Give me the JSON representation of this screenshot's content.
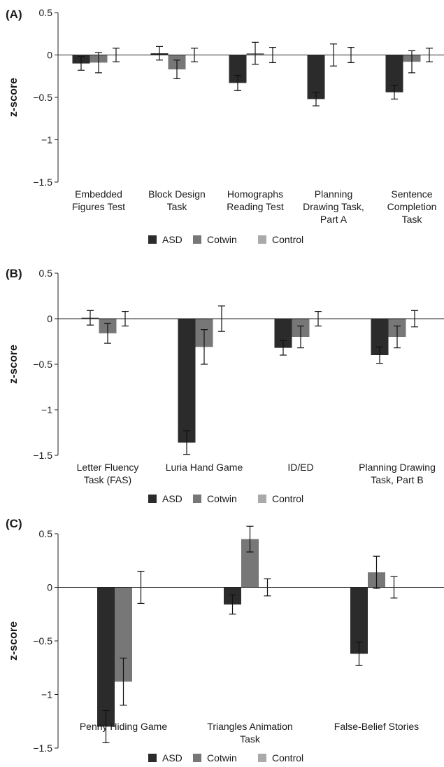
{
  "chart_data": [
    {
      "type": "bar",
      "panel_label": "(A)",
      "ylabel": "z-score",
      "ylim": [
        -1.5,
        0.5
      ],
      "yticks": [
        "0.5",
        "0",
        "−0.5",
        "−1",
        "−1.5"
      ],
      "grid": false,
      "legend_position": "bottom",
      "categories": [
        [
          "Embedded",
          "Figures Test"
        ],
        [
          "Block Design",
          "Task"
        ],
        [
          "Homographs",
          "Reading Test"
        ],
        [
          "Planning",
          "Drawing Task,",
          "Part A"
        ],
        [
          "Sentence",
          "Completion",
          "Task"
        ]
      ],
      "series": [
        {
          "name": "ASD",
          "color": "#2b2b2b",
          "values": [
            -0.1,
            0.02,
            -0.33,
            -0.52,
            -0.44
          ],
          "errors": [
            0.08,
            0.08,
            0.09,
            0.08,
            0.08
          ]
        },
        {
          "name": "Cotwin",
          "color": "#777777",
          "values": [
            -0.09,
            -0.17,
            0.02,
            0.0,
            -0.08
          ],
          "errors": [
            0.12,
            0.11,
            0.13,
            0.13,
            0.13
          ]
        },
        {
          "name": "Control",
          "color": "#aaaaaa",
          "values": [
            0.0,
            0.0,
            0.0,
            0.0,
            0.0
          ],
          "errors": [
            0.08,
            0.08,
            0.09,
            0.09,
            0.08
          ]
        }
      ]
    },
    {
      "type": "bar",
      "panel_label": "(B)",
      "ylabel": "z-score",
      "ylim": [
        -1.5,
        0.5
      ],
      "yticks": [
        "0.5",
        "0",
        "−0.5",
        "−1",
        "−1.5"
      ],
      "grid": false,
      "legend_position": "bottom",
      "categories": [
        [
          "Letter Fluency",
          "Task (FAS)"
        ],
        [
          "Luria Hand Game"
        ],
        [
          "ID/ED"
        ],
        [
          "Planning Drawing",
          "Task, Part B"
        ]
      ],
      "series": [
        {
          "name": "ASD",
          "color": "#2b2b2b",
          "values": [
            0.01,
            -1.36,
            -0.32,
            -0.4
          ],
          "errors": [
            0.08,
            0.13,
            0.08,
            0.09
          ]
        },
        {
          "name": "Cotwin",
          "color": "#777777",
          "values": [
            -0.16,
            -0.31,
            -0.2,
            -0.2
          ],
          "errors": [
            0.11,
            0.19,
            0.12,
            0.12
          ]
        },
        {
          "name": "Control",
          "color": "#aaaaaa",
          "values": [
            0.0,
            0.0,
            0.0,
            0.0
          ],
          "errors": [
            0.08,
            0.14,
            0.08,
            0.09
          ]
        }
      ]
    },
    {
      "type": "bar",
      "panel_label": "(C)",
      "ylabel": "z-score",
      "ylim": [
        -1.5,
        0.5
      ],
      "yticks": [
        "0.5",
        "0",
        "−0.5",
        "−1",
        "−1.5"
      ],
      "grid": false,
      "legend_position": "bottom",
      "categories": [
        [
          "Penny Hiding Game"
        ],
        [
          "Triangles Animation",
          "Task"
        ],
        [
          "False-Belief Stories"
        ]
      ],
      "series": [
        {
          "name": "ASD",
          "color": "#2b2b2b",
          "values": [
            -1.3,
            -0.16,
            -0.62
          ],
          "errors": [
            0.15,
            0.09,
            0.11
          ]
        },
        {
          "name": "Cotwin",
          "color": "#777777",
          "values": [
            -0.88,
            0.45,
            0.14
          ],
          "errors": [
            0.22,
            0.12,
            0.15
          ]
        },
        {
          "name": "Control",
          "color": "#aaaaaa",
          "values": [
            0.0,
            0.0,
            0.0
          ],
          "errors": [
            0.15,
            0.08,
            0.1
          ]
        }
      ]
    }
  ]
}
